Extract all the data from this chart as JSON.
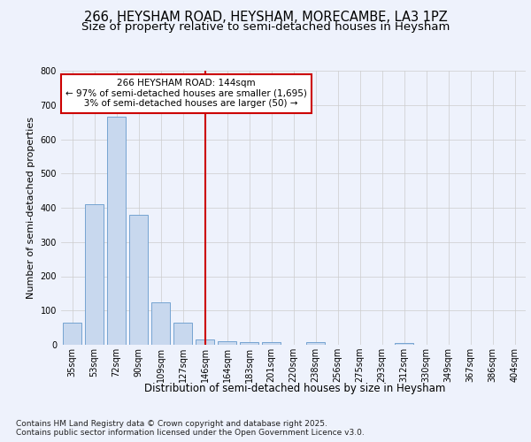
{
  "title1": "266, HEYSHAM ROAD, HEYSHAM, MORECAMBE, LA3 1PZ",
  "title2": "Size of property relative to semi-detached houses in Heysham",
  "xlabel": "Distribution of semi-detached houses by size in Heysham",
  "ylabel": "Number of semi-detached properties",
  "categories": [
    "35sqm",
    "53sqm",
    "72sqm",
    "90sqm",
    "109sqm",
    "127sqm",
    "146sqm",
    "164sqm",
    "183sqm",
    "201sqm",
    "220sqm",
    "238sqm",
    "256sqm",
    "275sqm",
    "293sqm",
    "312sqm",
    "330sqm",
    "349sqm",
    "367sqm",
    "386sqm",
    "404sqm"
  ],
  "values": [
    65,
    410,
    665,
    380,
    125,
    65,
    15,
    10,
    8,
    8,
    0,
    8,
    0,
    0,
    0,
    5,
    0,
    0,
    0,
    0,
    0
  ],
  "bar_color": "#c8d8ee",
  "bar_edge_color": "#6699cc",
  "vline_x_index": 6,
  "vline_color": "#cc0000",
  "annotation_line1": "266 HEYSHAM ROAD: 144sqm",
  "annotation_line2": "← 97% of semi-detached houses are smaller (1,695)",
  "annotation_line3": "   3% of semi-detached houses are larger (50) →",
  "annotation_box_color": "#ffffff",
  "annotation_box_edge": "#cc0000",
  "ylim": [
    0,
    800
  ],
  "yticks": [
    0,
    100,
    200,
    300,
    400,
    500,
    600,
    700,
    800
  ],
  "bg_color": "#eef2fc",
  "plot_bg_color": "#eef2fc",
  "footer1": "Contains HM Land Registry data © Crown copyright and database right 2025.",
  "footer2": "Contains public sector information licensed under the Open Government Licence v3.0.",
  "title1_fontsize": 10.5,
  "title2_fontsize": 9.5,
  "xlabel_fontsize": 8.5,
  "ylabel_fontsize": 8,
  "tick_fontsize": 7,
  "footer_fontsize": 6.5
}
